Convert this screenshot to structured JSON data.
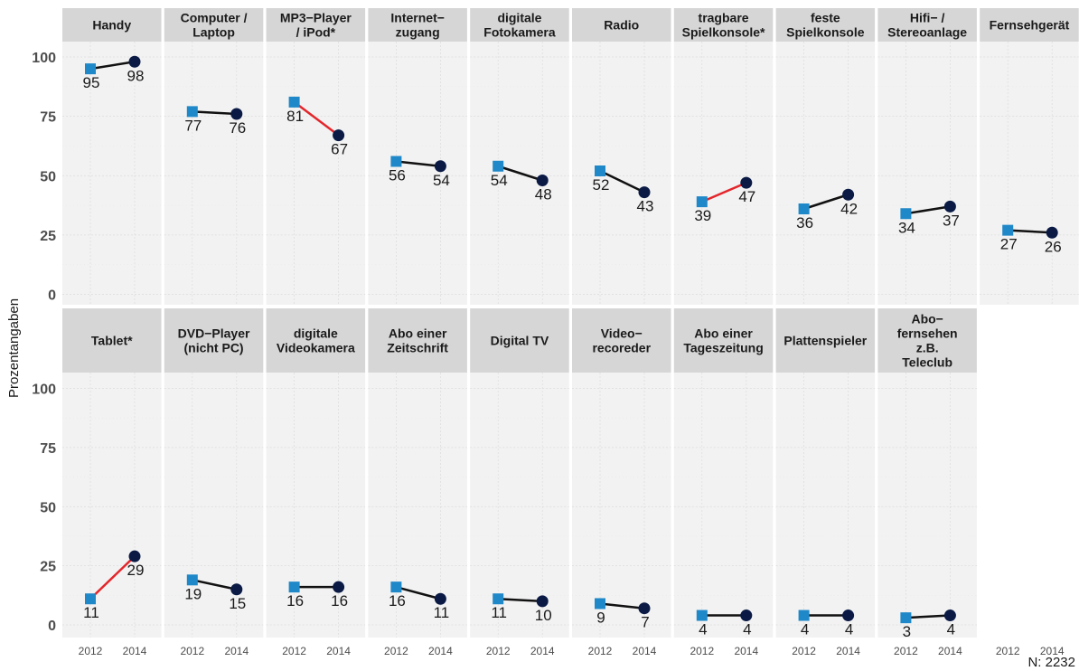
{
  "chart_data": {
    "type": "line",
    "x": [
      "2012",
      "2014"
    ],
    "ylabel": "Prozentangaben",
    "ylim": [
      0,
      100
    ],
    "yticks": [
      0,
      25,
      50,
      75,
      100
    ],
    "caption": "N: 2232",
    "grid": true,
    "colors": {
      "start_marker": "#1f88c8",
      "end_marker": "#0a1a45",
      "line_normal": "#111111",
      "line_significant": "#e3262b",
      "panel_bg": "#f2f2f2",
      "strip_bg": "#d6d6d6"
    },
    "panels": [
      {
        "label": "Handy",
        "values": [
          95,
          98
        ],
        "significant": false
      },
      {
        "label": "Computer /\nLaptop",
        "values": [
          77,
          76
        ],
        "significant": false
      },
      {
        "label": "MP3−Player\n/ iPod*",
        "values": [
          81,
          67
        ],
        "significant": true
      },
      {
        "label": "Internet−\nzugang",
        "values": [
          56,
          54
        ],
        "significant": false
      },
      {
        "label": "digitale\nFotokamera",
        "values": [
          54,
          48
        ],
        "significant": false
      },
      {
        "label": "Radio",
        "values": [
          52,
          43
        ],
        "significant": false
      },
      {
        "label": "tragbare\nSpielkonsole*",
        "values": [
          39,
          47
        ],
        "significant": true
      },
      {
        "label": "feste\nSpielkonsole",
        "values": [
          36,
          42
        ],
        "significant": false
      },
      {
        "label": "Hifi− /\nStereoanlage",
        "values": [
          34,
          37
        ],
        "significant": false
      },
      {
        "label": "Fernsehgerät",
        "values": [
          27,
          26
        ],
        "significant": false
      },
      {
        "label": "Tablet*",
        "values": [
          11,
          29
        ],
        "significant": true
      },
      {
        "label": "DVD−Player\n(nicht PC)",
        "values": [
          19,
          15
        ],
        "significant": false
      },
      {
        "label": "digitale\nVideokamera",
        "values": [
          16,
          16
        ],
        "significant": false
      },
      {
        "label": "Abo einer\nZeitschrift",
        "values": [
          16,
          11
        ],
        "significant": false
      },
      {
        "label": "Digital TV",
        "values": [
          11,
          10
        ],
        "significant": false
      },
      {
        "label": "Video−\nrecoreder",
        "values": [
          9,
          7
        ],
        "significant": false
      },
      {
        "label": "Abo einer\nTageszeitung",
        "values": [
          4,
          4
        ],
        "significant": false
      },
      {
        "label": "Plattenspieler",
        "values": [
          4,
          4
        ],
        "significant": false
      },
      {
        "label": "Abo−\nfernsehen\nz.B.\nTeleclub",
        "values": [
          3,
          4
        ],
        "significant": false
      }
    ]
  }
}
